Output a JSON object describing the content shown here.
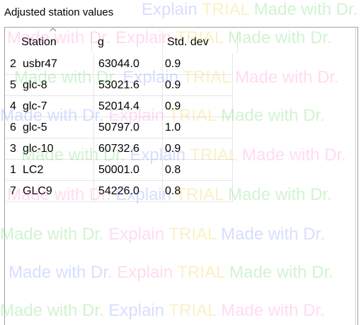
{
  "panel": {
    "title": "Adjusted station values"
  },
  "table": {
    "headers": {
      "station": "Station",
      "g": "g",
      "std_dev": "Std. dev"
    },
    "rows": [
      {
        "index": "2",
        "station": "usbr47",
        "g": "63044.0",
        "std_dev": "0.9"
      },
      {
        "index": "5",
        "station": "glc-8",
        "g": "53021.6",
        "std_dev": "0.9"
      },
      {
        "index": "4",
        "station": "glc-7",
        "g": "52014.4",
        "std_dev": "0.9"
      },
      {
        "index": "6",
        "station": "glc-5",
        "g": "50797.0",
        "std_dev": "1.0"
      },
      {
        "index": "3",
        "station": "glc-10",
        "g": "60732.6",
        "std_dev": "0.9"
      },
      {
        "index": "1",
        "station": "LC2",
        "g": "50001.0",
        "std_dev": "0.8"
      },
      {
        "index": "7",
        "station": "GLC9",
        "g": "54226.0",
        "std_dev": "0.8"
      }
    ]
  },
  "watermark": {
    "part1": "Made with Dr.",
    "part2": "Explain",
    "part3": "TRIAL"
  }
}
